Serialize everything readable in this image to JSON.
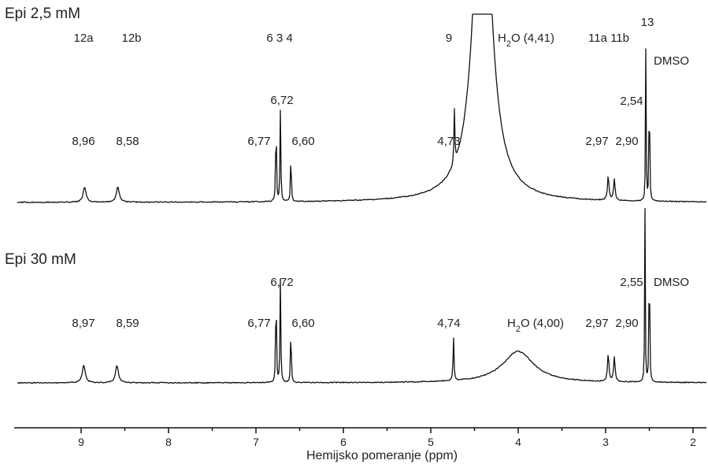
{
  "chart_data": {
    "type": "line",
    "xlabel": "Hemijsko pomeranje (ppm)",
    "xlim": [
      9.75,
      1.95
    ],
    "x_reversed": true,
    "x_ticks": [
      "9",
      "8",
      "7",
      "6",
      "5",
      "4",
      "3",
      "2"
    ],
    "grid": false,
    "series": [
      {
        "name": "Epi 2,5 mM",
        "assignments": [
          {
            "label": "12a",
            "ppm": 8.96
          },
          {
            "label": "12b",
            "ppm": 8.58
          },
          {
            "label": "6",
            "ppm": 6.77
          },
          {
            "label": "3",
            "ppm": 6.72
          },
          {
            "label": "4",
            "ppm": 6.6
          },
          {
            "label": "9",
            "ppm": 4.73
          },
          {
            "label": "11a",
            "ppm": 2.97
          },
          {
            "label": "11b",
            "ppm": 2.9
          },
          {
            "label": "13",
            "ppm": 2.54
          }
        ],
        "peaks": [
          {
            "ppm": 8.96,
            "label": "8,96",
            "height": 0.1,
            "width": 0.02
          },
          {
            "ppm": 8.58,
            "label": "8,58",
            "height": 0.1,
            "width": 0.02
          },
          {
            "ppm": 6.77,
            "label": "6,77",
            "height": 0.6,
            "width": 0.005
          },
          {
            "ppm": 6.72,
            "label": "6,72",
            "height": 0.6,
            "width": 0.005
          },
          {
            "ppm": 6.6,
            "label": "6,60",
            "height": 0.35,
            "width": 0.005
          },
          {
            "ppm": 4.73,
            "label": "4,73",
            "height": 0.35,
            "width": 0.006
          },
          {
            "ppm": 4.41,
            "label": "H2O (4,41)",
            "height": 2.5,
            "width": 0.11
          },
          {
            "ppm": 2.97,
            "label": "2,97",
            "height": 0.16,
            "width": 0.01
          },
          {
            "ppm": 2.9,
            "label": "2,90",
            "height": 0.14,
            "width": 0.01
          },
          {
            "ppm": 2.54,
            "label": "2,54",
            "height": 1.0,
            "width": 0.004
          },
          {
            "ppm": 2.5,
            "label": "DMSO",
            "height": 1.0,
            "width": 0.004
          }
        ]
      },
      {
        "name": "Epi 30 mM",
        "peaks": [
          {
            "ppm": 8.97,
            "label": "8,97",
            "height": 0.1,
            "width": 0.02
          },
          {
            "ppm": 8.59,
            "label": "8,59",
            "height": 0.1,
            "width": 0.02
          },
          {
            "ppm": 6.77,
            "label": "6,77",
            "height": 0.6,
            "width": 0.005
          },
          {
            "ppm": 6.72,
            "label": "6,72",
            "height": 0.6,
            "width": 0.005
          },
          {
            "ppm": 6.6,
            "label": "6,60",
            "height": 0.35,
            "width": 0.005
          },
          {
            "ppm": 4.74,
            "label": "4,74",
            "height": 0.25,
            "width": 0.006
          },
          {
            "ppm": 4.0,
            "label": "H2O (4,00)",
            "height": 0.18,
            "width": 0.22
          },
          {
            "ppm": 2.97,
            "label": "2,97",
            "height": 0.16,
            "width": 0.01
          },
          {
            "ppm": 2.9,
            "label": "2,90",
            "height": 0.14,
            "width": 0.01
          },
          {
            "ppm": 2.55,
            "label": "2,55",
            "height": 1.0,
            "width": 0.004
          },
          {
            "ppm": 2.5,
            "label": "DMSO",
            "height": 1.0,
            "width": 0.004
          }
        ]
      }
    ]
  },
  "text": {
    "title_top": "Epi 2,5 mM",
    "title_bottom": "Epi 30 mM",
    "xlabel": "Hemijsko pomeranje (ppm)",
    "h2o_top_rest": "O (4,41)",
    "h2o_bottom_rest": "O (4,00)",
    "h_letter": "H",
    "sub_2": "2",
    "ticks": [
      "9",
      "8",
      "7",
      "6",
      "5",
      "4",
      "3",
      "2"
    ],
    "top_assign": {
      "a12a": "12a",
      "a12b": "12b",
      "a634": "6 3 4",
      "a9": "9",
      "a11": "11a 11b",
      "a13": "13"
    },
    "top_vals": {
      "v896": "8,96",
      "v858": "8,58",
      "v672": "6,72",
      "v677": "6,77",
      "v660": "6,60",
      "v473": "4,73",
      "v297": "2,97",
      "v290": "2,90",
      "v254": "2,54",
      "dmso": "DMSO"
    },
    "bot_vals": {
      "v897": "8,97",
      "v859": "8,59",
      "v672": "6,72",
      "v677": "6,77",
      "v660": "6,60",
      "v474": "4,74",
      "v297": "2,97",
      "v290": "2,90",
      "v255": "2,55",
      "dmso": "DMSO"
    }
  }
}
